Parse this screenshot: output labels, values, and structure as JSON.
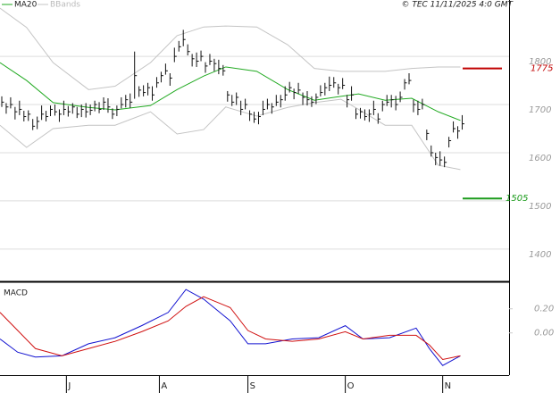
{
  "chart_data": [
    {
      "type": "ohlc",
      "credit": "© TEC 11/11/2025 4:0 GMT",
      "xlim": [
        0,
        115
      ],
      "ylim": [
        1333,
        1917
      ],
      "yticks": [
        1400,
        1500,
        1600,
        1700,
        1800
      ],
      "grid": true,
      "x": [
        0,
        1,
        2,
        3,
        4,
        5,
        6,
        7,
        8,
        9,
        10,
        11,
        12,
        13,
        14,
        15,
        16,
        17,
        18,
        19,
        20,
        21,
        22,
        23,
        24,
        25,
        26,
        27,
        28,
        29,
        30,
        31,
        32,
        33,
        34,
        35,
        36,
        37,
        38,
        39,
        40,
        41,
        42,
        43,
        44,
        45,
        46,
        47,
        48,
        49,
        50,
        51,
        52,
        53,
        54,
        55,
        56,
        57,
        58,
        59,
        60,
        61,
        62,
        63,
        64,
        65,
        66,
        67,
        68,
        69,
        70,
        71,
        72,
        73,
        74,
        75,
        76,
        77,
        78,
        79,
        80,
        81,
        82,
        83,
        84,
        85,
        86,
        87,
        88,
        89,
        90,
        91,
        92,
        93,
        94,
        95,
        96,
        97,
        98,
        99,
        100,
        101,
        102,
        103,
        104
      ],
      "high": [
        1717,
        1703,
        1715,
        1695,
        1708,
        1687,
        1688,
        1670,
        1675,
        1698,
        1687,
        1698,
        1700,
        1690,
        1708,
        1697,
        1703,
        1695,
        1700,
        1703,
        1700,
        1708,
        1705,
        1715,
        1713,
        1692,
        1698,
        1715,
        1720,
        1723,
        1810,
        1738,
        1740,
        1745,
        1738,
        1757,
        1768,
        1785,
        1765,
        1818,
        1832,
        1855,
        1825,
        1805,
        1808,
        1812,
        1788,
        1805,
        1795,
        1793,
        1782,
        1728,
        1720,
        1725,
        1708,
        1712,
        1688,
        1685,
        1685,
        1708,
        1712,
        1703,
        1720,
        1720,
        1738,
        1747,
        1733,
        1745,
        1725,
        1728,
        1717,
        1723,
        1740,
        1745,
        1758,
        1757,
        1743,
        1755,
        1720,
        1738,
        1692,
        1693,
        1690,
        1690,
        1708,
        1682,
        1708,
        1720,
        1720,
        1718,
        1727,
        1753,
        1765,
        1710,
        1708,
        1712,
        1648,
        1615,
        1600,
        1603,
        1592,
        1633,
        1665,
        1655,
        1678
      ],
      "low": [
        1695,
        1681,
        1692,
        1669,
        1678,
        1665,
        1666,
        1647,
        1649,
        1668,
        1665,
        1676,
        1677,
        1664,
        1678,
        1675,
        1681,
        1672,
        1674,
        1673,
        1678,
        1686,
        1682,
        1689,
        1683,
        1670,
        1676,
        1692,
        1694,
        1693,
        1712,
        1716,
        1717,
        1719,
        1708,
        1735,
        1746,
        1762,
        1739,
        1788,
        1810,
        1821,
        1802,
        1779,
        1778,
        1790,
        1766,
        1782,
        1769,
        1763,
        1760,
        1706,
        1697,
        1699,
        1678,
        1690,
        1666,
        1662,
        1659,
        1678,
        1690,
        1681,
        1697,
        1694,
        1708,
        1725,
        1711,
        1722,
        1699,
        1698,
        1695,
        1701,
        1717,
        1719,
        1728,
        1735,
        1721,
        1732,
        1694,
        1708,
        1670,
        1671,
        1667,
        1664,
        1678,
        1660,
        1686,
        1697,
        1694,
        1688,
        1705,
        1731,
        1742,
        1684,
        1678,
        1690,
        1626,
        1592,
        1574,
        1573,
        1570,
        1611,
        1642,
        1629,
        1648
      ],
      "close": [
        1705,
        1695,
        1700,
        1685,
        1690,
        1675,
        1680,
        1655,
        1665,
        1680,
        1675,
        1690,
        1685,
        1680,
        1690,
        1685,
        1695,
        1680,
        1690,
        1685,
        1688,
        1700,
        1690,
        1705,
        1695,
        1680,
        1690,
        1700,
        1710,
        1705,
        1760,
        1730,
        1725,
        1735,
        1720,
        1745,
        1760,
        1770,
        1755,
        1800,
        1820,
        1835,
        1810,
        1795,
        1790,
        1800,
        1780,
        1790,
        1785,
        1775,
        1770,
        1720,
        1705,
        1715,
        1690,
        1700,
        1680,
        1670,
        1675,
        1690,
        1700,
        1695,
        1705,
        1710,
        1720,
        1735,
        1725,
        1730,
        1715,
        1710,
        1705,
        1715,
        1725,
        1735,
        1740,
        1745,
        1735,
        1740,
        1710,
        1720,
        1680,
        1685,
        1675,
        1680,
        1690,
        1670,
        1700,
        1705,
        1710,
        1700,
        1715,
        1745,
        1750,
        1700,
        1690,
        1700,
        1640,
        1600,
        1590,
        1585,
        1580,
        1625,
        1650,
        1645,
        1660
      ],
      "series": [
        {
          "name": "MA20",
          "color": "#22aa22",
          "x": [
            0,
            6,
            12,
            20,
            26,
            34,
            40,
            46,
            51,
            58,
            65,
            71,
            77,
            81,
            87,
            93,
            99,
            104
          ],
          "values": [
            1787,
            1750,
            1704,
            1694,
            1689,
            1698,
            1731,
            1759,
            1778,
            1769,
            1731,
            1709,
            1717,
            1722,
            1709,
            1713,
            1685,
            1667
          ]
        },
        {
          "name": "BBands",
          "color": "#c4c4c4",
          "x": [
            0,
            6,
            12,
            20,
            26,
            34,
            40,
            46,
            51,
            58,
            65,
            71,
            77,
            81,
            87,
            93,
            99,
            104
          ],
          "upper": [
            1900,
            1860,
            1787,
            1731,
            1738,
            1787,
            1843,
            1861,
            1863,
            1861,
            1824,
            1775,
            1769,
            1769,
            1769,
            1775,
            1778,
            1778
          ],
          "lower": [
            1657,
            1611,
            1650,
            1657,
            1657,
            1685,
            1639,
            1648,
            1695,
            1676,
            1694,
            1704,
            1711,
            1690,
            1657,
            1657,
            1574,
            1565
          ]
        }
      ],
      "levels": [
        {
          "value": 1775,
          "color": "#c00000"
        },
        {
          "value": 1505,
          "color": "#1a9a1a"
        }
      ]
    },
    {
      "type": "line",
      "title": "MACD",
      "xlim": [
        0,
        115
      ],
      "ylim": [
        -0.35,
        0.42
      ],
      "xticks": [
        {
          "value": 15,
          "label": "J"
        },
        {
          "value": 36,
          "label": "A"
        },
        {
          "value": 56,
          "label": "S"
        },
        {
          "value": 78,
          "label": "O"
        },
        {
          "value": 100,
          "label": "N"
        }
      ],
      "yticks": [
        {
          "value": 0,
          "label": "0.00"
        },
        {
          "value": 0.2,
          "label": "0.20"
        }
      ],
      "x": [
        0,
        4,
        8,
        14,
        20,
        26,
        32,
        38,
        42,
        46,
        52,
        56,
        60,
        66,
        72,
        78,
        82,
        88,
        94,
        97,
        100,
        104
      ],
      "series": [
        {
          "color": "#1010d0",
          "values": [
            -0.05,
            -0.16,
            -0.2,
            -0.19,
            -0.09,
            -0.04,
            0.06,
            0.17,
            0.36,
            0.28,
            0.1,
            -0.09,
            -0.09,
            -0.05,
            -0.04,
            0.06,
            -0.05,
            -0.04,
            0.04,
            -0.13,
            -0.27,
            -0.19
          ]
        },
        {
          "color": "#d01010",
          "values": [
            0.17,
            0.02,
            -0.13,
            -0.19,
            -0.13,
            -0.07,
            0.01,
            0.1,
            0.22,
            0.3,
            0.21,
            0.02,
            -0.05,
            -0.07,
            -0.05,
            0.01,
            -0.05,
            -0.02,
            -0.02,
            -0.1,
            -0.22,
            -0.19
          ]
        }
      ]
    }
  ]
}
